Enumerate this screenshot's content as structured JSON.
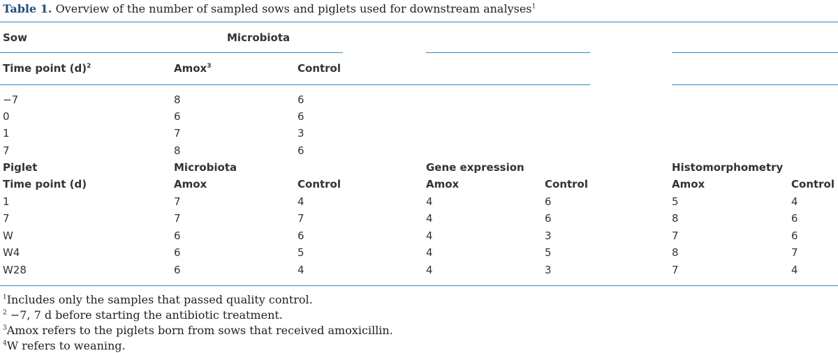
{
  "caption": {
    "label": "Table 1.",
    "text": "Overview of the number of sampled sows and piglets used for downstream analyses",
    "sup": "1"
  },
  "sow": {
    "section_label": "Sow",
    "group_label": "Microbiota",
    "timepoint_label": "Time point (d)",
    "timepoint_sup": "2",
    "amox_label": "Amox",
    "amox_sup": "3",
    "control_label": "Control",
    "rows": [
      {
        "time": "−7",
        "amox": "8",
        "control": "6"
      },
      {
        "time": "0",
        "amox": "6",
        "control": "6"
      },
      {
        "time": "1",
        "amox": "7",
        "control": "3"
      },
      {
        "time": "7",
        "amox": "8",
        "control": "6"
      }
    ]
  },
  "piglet": {
    "section_label": "Piglet",
    "groups": [
      "Microbiota",
      "Gene expression",
      "Histomorphometry"
    ],
    "timepoint_label": "Time point (d)",
    "amox_label": "Amox",
    "control_label": "Control",
    "rows": [
      {
        "time": "1",
        "values": [
          "7",
          "4",
          "4",
          "6",
          "5",
          "4"
        ]
      },
      {
        "time": "7",
        "values": [
          "7",
          "7",
          "4",
          "6",
          "8",
          "6"
        ]
      },
      {
        "time": "W",
        "values": [
          "6",
          "6",
          "4",
          "3",
          "7",
          "6"
        ]
      },
      {
        "time": "W4",
        "values": [
          "6",
          "5",
          "4",
          "5",
          "8",
          "7"
        ]
      },
      {
        "time": "W28",
        "values": [
          "6",
          "4",
          "4",
          "3",
          "7",
          "4"
        ]
      }
    ]
  },
  "footnotes": [
    {
      "sup": "1",
      "text": "Includes only the samples that passed quality control."
    },
    {
      "sup": "2",
      "text": " −7, 7 d before starting the antibiotic treatment."
    },
    {
      "sup": "3",
      "text": "Amox refers to the piglets born from sows that received amoxicillin."
    },
    {
      "sup": "4",
      "text": "W refers to weaning."
    }
  ],
  "colors": {
    "rule": "#2e86c1",
    "caption_label": "#1f4e79"
  }
}
